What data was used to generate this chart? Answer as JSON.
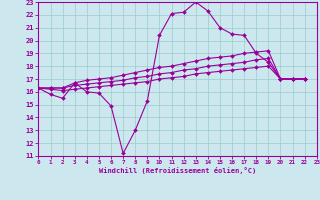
{
  "xlabel": "Windchill (Refroidissement éolien,°C)",
  "bg_color": "#cce8ee",
  "line_color": "#990099",
  "grid_color": "#99cccc",
  "ylim": [
    11,
    23
  ],
  "xlim": [
    0,
    23
  ],
  "yticks": [
    11,
    12,
    13,
    14,
    15,
    16,
    17,
    18,
    19,
    20,
    21,
    22,
    23
  ],
  "xticks": [
    0,
    1,
    2,
    3,
    4,
    5,
    6,
    7,
    8,
    9,
    10,
    11,
    12,
    13,
    14,
    15,
    16,
    17,
    18,
    19,
    20,
    21,
    22,
    23
  ],
  "series": [
    [
      16.3,
      15.8,
      15.5,
      16.7,
      16.0,
      15.9,
      14.9,
      11.2,
      13.0,
      15.3,
      20.4,
      22.1,
      22.2,
      23.0,
      22.3,
      21.0,
      20.5,
      20.4,
      19.0,
      18.3,
      17.0,
      17.0,
      17.0
    ],
    [
      16.3,
      16.2,
      16.1,
      16.2,
      16.3,
      16.4,
      16.5,
      16.6,
      16.7,
      16.8,
      17.0,
      17.1,
      17.2,
      17.4,
      17.5,
      17.6,
      17.7,
      17.8,
      17.9,
      18.0,
      17.0,
      17.0,
      17.0
    ],
    [
      16.3,
      16.3,
      16.3,
      16.5,
      16.6,
      16.7,
      16.8,
      16.9,
      17.1,
      17.2,
      17.4,
      17.5,
      17.7,
      17.8,
      18.0,
      18.1,
      18.2,
      18.3,
      18.5,
      18.6,
      17.0,
      17.0,
      17.0
    ],
    [
      16.3,
      16.3,
      16.3,
      16.7,
      16.9,
      17.0,
      17.1,
      17.3,
      17.5,
      17.7,
      17.9,
      18.0,
      18.2,
      18.4,
      18.6,
      18.7,
      18.8,
      19.0,
      19.1,
      19.2,
      17.0,
      17.0,
      17.0
    ]
  ],
  "x": [
    0,
    1,
    2,
    3,
    4,
    5,
    6,
    7,
    8,
    9,
    10,
    11,
    12,
    13,
    14,
    15,
    16,
    17,
    18,
    19,
    20,
    21,
    22
  ]
}
